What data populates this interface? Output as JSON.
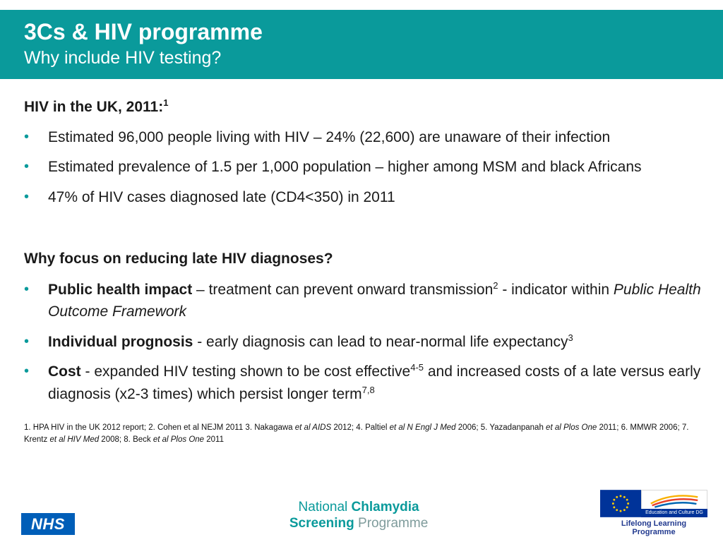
{
  "colors": {
    "accent_teal": "#0a9a9b",
    "nhs_blue": "#005EB8",
    "eu_blue": "#003399",
    "star_yellow": "#FFCC00",
    "body_text": "#1a1a1a"
  },
  "icons": {
    "bullet": "•",
    "eu_flag": "eu-flag-stars",
    "bird_swoosh": "tricolor-swoosh"
  },
  "header": {
    "title": "3Cs & HIV programme",
    "subtitle": "Why include HIV testing?"
  },
  "body": {
    "section1": {
      "heading": [
        {
          "t": "HIV in the UK, 2011:"
        },
        {
          "t": "1",
          "sup": true
        }
      ],
      "bullets": [
        [
          {
            "t": "Estimated 96,000 people living with HIV – 24% (22,600) are unaware of their infection"
          }
        ],
        [
          {
            "t": "Estimated prevalence of 1.5 per 1,000 population – higher among MSM and black Africans"
          }
        ],
        [
          {
            "t": "47% of HIV cases diagnosed late (CD4<350) in 2011"
          }
        ]
      ]
    },
    "section2": {
      "heading": [
        {
          "t": "Why focus on reducing late HIV diagnoses?"
        }
      ],
      "bullets": [
        [
          {
            "t": "Public health impact",
            "b": true
          },
          {
            "t": " – treatment can prevent onward transmission"
          },
          {
            "t": "2",
            "sup": true
          },
          {
            "t": " - indicator within "
          },
          {
            "t": "Public Health Outcome Framework",
            "i": true
          }
        ],
        [
          {
            "t": "Individual prognosis",
            "b": true
          },
          {
            "t": "  - early diagnosis can lead to near-normal life expectancy"
          },
          {
            "t": "3",
            "sup": true
          }
        ],
        [
          {
            "t": "Cost",
            "b": true
          },
          {
            "t": " - expanded HIV testing shown to be cost effective"
          },
          {
            "t": "4-5",
            "sup": true
          },
          {
            "t": " and increased costs of a late versus early diagnosis (x2-3 times) which persist longer term"
          },
          {
            "t": "7,8",
            "sup": true
          }
        ]
      ]
    },
    "footnote": [
      {
        "t": "1. HPA HIV in the UK 2012 report; 2. Cohen et al NEJM 2011 3. Nakagawa "
      },
      {
        "t": "et al AIDS",
        "i": true
      },
      {
        "t": " 2012; 4. Paltiel "
      },
      {
        "t": "et al N Engl J Med",
        "i": true
      },
      {
        "t": " 2006; 5. Yazadanpanah "
      },
      {
        "t": "et al Plos One",
        "i": true
      },
      {
        "t": " 2011; 6. MMWR 2006;  7. Krentz "
      },
      {
        "t": "et al HIV Med",
        "i": true
      },
      {
        "t": " 2008; 8. Beck "
      },
      {
        "t": "et al Plos One",
        "i": true
      },
      {
        "t": " 2011"
      }
    ]
  },
  "footer": {
    "nhs_label": "NHS",
    "ncsp": {
      "word1": "National ",
      "word2": "Chlamydia",
      "word3": "Screening ",
      "word4": "Programme"
    },
    "llp": {
      "dg_label": "Education and Culture DG",
      "programme_label": "Lifelong Learning Programme"
    }
  }
}
